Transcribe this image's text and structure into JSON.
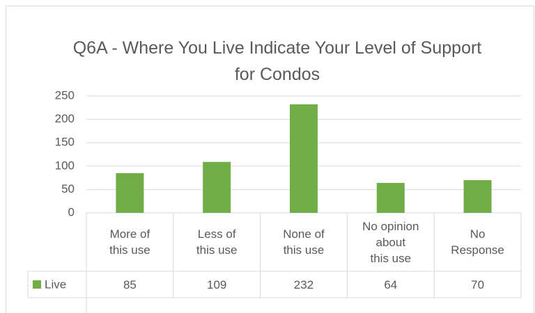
{
  "chart_data": {
    "type": "bar",
    "title": "Q6A - Where You Live Indicate Your Level of Support for Condos",
    "categories": [
      "More of this use",
      "Less of this use",
      "None of this use",
      "No opinion about this use",
      "No Response"
    ],
    "series": [
      {
        "name": "Live",
        "color": "#70ad47",
        "values": [
          85,
          109,
          232,
          64,
          70
        ]
      }
    ],
    "ylim": [
      0,
      250
    ],
    "yticks": [
      0,
      50,
      100,
      150,
      200,
      250
    ],
    "grid": true,
    "data_table": true
  }
}
